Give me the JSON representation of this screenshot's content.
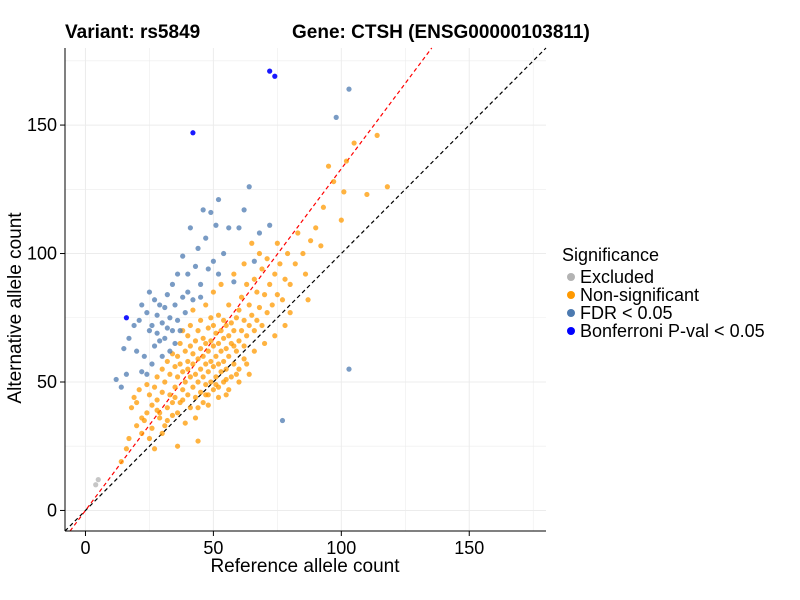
{
  "chart_data": {
    "type": "scatter",
    "title_left": "Variant: rs5849",
    "title_right": "Gene: CTSH (ENSG00000103811)",
    "xlabel": "Reference allele count",
    "ylabel": "Alternative allele count",
    "xlim": [
      -8,
      180
    ],
    "ylim": [
      -8,
      180
    ],
    "x_ticks": [
      0,
      50,
      100,
      150
    ],
    "y_ticks": [
      0,
      50,
      100,
      150
    ],
    "grid": true,
    "reference_lines": [
      {
        "name": "identity",
        "slope": 1.0,
        "intercept": 0,
        "color": "#000000",
        "dash": "dashed"
      },
      {
        "name": "fit",
        "slope": 1.33,
        "intercept": 0,
        "color": "#ff0000",
        "dash": "dashed"
      }
    ],
    "legend": {
      "title": "Significance",
      "position": "right",
      "entries": [
        {
          "label": "Excluded",
          "color": "#b3b3b3"
        },
        {
          "label": "Non-significant",
          "color": "#ff9900"
        },
        {
          "label": "FDR < 0.05",
          "color": "#4c7ab0"
        },
        {
          "label": "Bonferroni P-val < 0.05",
          "color": "#0000ff"
        }
      ]
    },
    "series": [
      {
        "name": "Excluded",
        "color": "#b3b3b3",
        "points": [
          [
            5,
            12
          ],
          [
            4,
            10
          ]
        ]
      },
      {
        "name": "Non-significant",
        "color": "#ff9900",
        "points": [
          [
            14,
            19
          ],
          [
            16,
            24
          ],
          [
            17,
            28
          ],
          [
            18,
            40
          ],
          [
            19,
            44
          ],
          [
            20,
            42
          ],
          [
            21,
            47
          ],
          [
            22,
            30
          ],
          [
            23,
            35
          ],
          [
            24,
            38
          ],
          [
            25,
            28
          ],
          [
            25,
            45
          ],
          [
            26,
            32
          ],
          [
            27,
            48
          ],
          [
            28,
            43
          ],
          [
            28,
            52
          ],
          [
            29,
            38
          ],
          [
            30,
            46
          ],
          [
            30,
            55
          ],
          [
            31,
            33
          ],
          [
            31,
            50
          ],
          [
            32,
            40
          ],
          [
            32,
            58
          ],
          [
            33,
            45
          ],
          [
            33,
            53
          ],
          [
            34,
            37
          ],
          [
            34,
            61
          ],
          [
            35,
            48
          ],
          [
            35,
            56
          ],
          [
            35,
            44
          ],
          [
            36,
            52
          ],
          [
            36,
            60
          ],
          [
            36,
            25
          ],
          [
            37,
            42
          ],
          [
            37,
            57
          ],
          [
            37,
            65
          ],
          [
            38,
            47
          ],
          [
            38,
            54
          ],
          [
            38,
            70
          ],
          [
            39,
            50
          ],
          [
            39,
            62
          ],
          [
            39,
            34
          ],
          [
            40,
            45
          ],
          [
            40,
            55
          ],
          [
            40,
            68
          ],
          [
            40,
            58
          ],
          [
            41,
            40
          ],
          [
            41,
            52
          ],
          [
            41,
            64
          ],
          [
            41,
            72
          ],
          [
            42,
            48
          ],
          [
            42,
            57
          ],
          [
            42,
            61
          ],
          [
            42,
            78
          ],
          [
            43,
            44
          ],
          [
            43,
            53
          ],
          [
            43,
            66
          ],
          [
            43,
            36
          ],
          [
            44,
            50
          ],
          [
            44,
            59
          ],
          [
            44,
            70
          ],
          [
            44,
            27
          ],
          [
            45,
            46
          ],
          [
            45,
            55
          ],
          [
            45,
            63
          ],
          [
            45,
            74
          ],
          [
            46,
            42
          ],
          [
            46,
            52
          ],
          [
            46,
            60
          ],
          [
            46,
            67
          ],
          [
            47,
            49
          ],
          [
            47,
            57
          ],
          [
            47,
            65
          ],
          [
            47,
            80
          ],
          [
            48,
            45
          ],
          [
            48,
            54
          ],
          [
            48,
            62
          ],
          [
            48,
            71
          ],
          [
            49,
            50
          ],
          [
            49,
            58
          ],
          [
            49,
            66
          ],
          [
            49,
            75
          ],
          [
            50,
            47
          ],
          [
            50,
            56
          ],
          [
            50,
            64
          ],
          [
            50,
            72
          ],
          [
            50,
            85
          ],
          [
            51,
            52
          ],
          [
            51,
            60
          ],
          [
            51,
            69
          ],
          [
            52,
            48
          ],
          [
            52,
            57
          ],
          [
            52,
            65
          ],
          [
            52,
            76
          ],
          [
            53,
            54
          ],
          [
            53,
            62
          ],
          [
            53,
            70
          ],
          [
            53,
            88
          ],
          [
            54,
            50
          ],
          [
            54,
            58
          ],
          [
            54,
            67
          ],
          [
            54,
            74
          ],
          [
            55,
            45
          ],
          [
            55,
            55
          ],
          [
            55,
            63
          ],
          [
            55,
            72
          ],
          [
            56,
            60
          ],
          [
            56,
            68
          ],
          [
            56,
            80
          ],
          [
            57,
            52
          ],
          [
            57,
            65
          ],
          [
            57,
            73
          ],
          [
            58,
            57
          ],
          [
            58,
            70
          ],
          [
            58,
            92
          ],
          [
            59,
            62
          ],
          [
            59,
            75
          ],
          [
            60,
            66
          ],
          [
            60,
            78
          ],
          [
            60,
            55
          ],
          [
            61,
            70
          ],
          [
            61,
            83
          ],
          [
            62,
            64
          ],
          [
            62,
            74
          ],
          [
            62,
            96
          ],
          [
            63,
            68
          ],
          [
            63,
            88
          ],
          [
            64,
            72
          ],
          [
            64,
            80
          ],
          [
            65,
            76
          ],
          [
            65,
            104
          ],
          [
            66,
            70
          ],
          [
            66,
            90
          ],
          [
            67,
            74
          ],
          [
            67,
            85
          ],
          [
            68,
            79
          ],
          [
            68,
            100
          ],
          [
            69,
            72
          ],
          [
            69,
            94
          ],
          [
            70,
            84
          ],
          [
            71,
            77
          ],
          [
            71,
            98
          ],
          [
            72,
            88
          ],
          [
            73,
            80
          ],
          [
            74,
            92
          ],
          [
            75,
            84
          ],
          [
            75,
            104
          ],
          [
            76,
            96
          ],
          [
            77,
            82
          ],
          [
            78,
            90
          ],
          [
            79,
            100
          ],
          [
            80,
            88
          ],
          [
            82,
            96
          ],
          [
            83,
            108
          ],
          [
            85,
            100
          ],
          [
            86,
            92
          ],
          [
            88,
            105
          ],
          [
            90,
            110
          ],
          [
            92,
            103
          ],
          [
            95,
            134
          ],
          [
            97,
            128
          ],
          [
            100,
            113
          ],
          [
            101,
            124
          ],
          [
            105,
            143
          ],
          [
            110,
            123
          ],
          [
            114,
            146
          ],
          [
            118,
            126
          ],
          [
            102,
            136
          ],
          [
            93,
            118
          ],
          [
            87,
            82
          ],
          [
            27,
            24
          ],
          [
            30,
            30
          ],
          [
            32,
            35
          ],
          [
            34,
            42
          ],
          [
            36,
            38
          ],
          [
            38,
            43
          ],
          [
            22,
            36
          ],
          [
            26,
            41
          ],
          [
            29,
            36
          ],
          [
            20,
            33
          ],
          [
            24,
            49
          ],
          [
            28,
            39
          ],
          [
            44,
            40
          ],
          [
            48,
            41
          ],
          [
            52,
            44
          ],
          [
            56,
            47
          ],
          [
            60,
            50
          ],
          [
            64,
            53
          ],
          [
            58,
            64
          ],
          [
            62,
            59
          ],
          [
            66,
            62
          ],
          [
            70,
            65
          ],
          [
            74,
            68
          ],
          [
            78,
            72
          ],
          [
            80,
            77
          ],
          [
            47,
            45
          ],
          [
            51,
            49
          ],
          [
            55,
            51
          ],
          [
            59,
            53
          ],
          [
            63,
            57
          ]
        ]
      },
      {
        "name": "FDR < 0.05",
        "color": "#4c7ab0",
        "points": [
          [
            12,
            51
          ],
          [
            14,
            48
          ],
          [
            15,
            63
          ],
          [
            16,
            53
          ],
          [
            17,
            67
          ],
          [
            19,
            72
          ],
          [
            20,
            62
          ],
          [
            21,
            74
          ],
          [
            22,
            54
          ],
          [
            22,
            80
          ],
          [
            23,
            60
          ],
          [
            24,
            53
          ],
          [
            24,
            77
          ],
          [
            25,
            85
          ],
          [
            25,
            70
          ],
          [
            26,
            72
          ],
          [
            26,
            57
          ],
          [
            27,
            82
          ],
          [
            27,
            64
          ],
          [
            28,
            76
          ],
          [
            28,
            69
          ],
          [
            29,
            80
          ],
          [
            29,
            66
          ],
          [
            30,
            73
          ],
          [
            30,
            60
          ],
          [
            31,
            79
          ],
          [
            31,
            67
          ],
          [
            32,
            84
          ],
          [
            32,
            71
          ],
          [
            33,
            75
          ],
          [
            33,
            62
          ],
          [
            34,
            88
          ],
          [
            34,
            70
          ],
          [
            35,
            80
          ],
          [
            35,
            65
          ],
          [
            36,
            92
          ],
          [
            36,
            74
          ],
          [
            37,
            70
          ],
          [
            38,
            83
          ],
          [
            38,
            99
          ],
          [
            39,
            77
          ],
          [
            40,
            92
          ],
          [
            41,
            110
          ],
          [
            42,
            82
          ],
          [
            43,
            95
          ],
          [
            44,
            102
          ],
          [
            45,
            88
          ],
          [
            46,
            117
          ],
          [
            47,
            106
          ],
          [
            48,
            94
          ],
          [
            49,
            116
          ],
          [
            50,
            97
          ],
          [
            51,
            111
          ],
          [
            52,
            121
          ],
          [
            54,
            100
          ],
          [
            56,
            110
          ],
          [
            58,
            89
          ],
          [
            60,
            110
          ],
          [
            62,
            117
          ],
          [
            64,
            126
          ],
          [
            66,
            97
          ],
          [
            68,
            108
          ],
          [
            72,
            111
          ],
          [
            77,
            35
          ],
          [
            98,
            153
          ],
          [
            103,
            164
          ],
          [
            103,
            55
          ],
          [
            45,
            83
          ],
          [
            52,
            92
          ],
          [
            40,
            85
          ]
        ]
      },
      {
        "name": "Bonferroni P-val < 0.05",
        "color": "#0000ff",
        "points": [
          [
            16,
            75
          ],
          [
            42,
            147
          ],
          [
            72,
            171
          ],
          [
            74,
            169
          ]
        ]
      }
    ]
  }
}
